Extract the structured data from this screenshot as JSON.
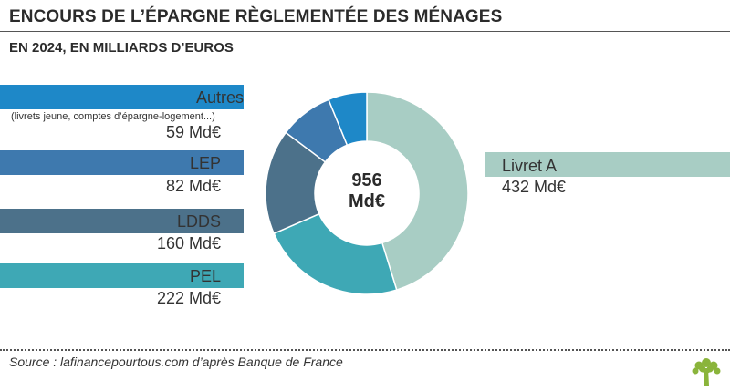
{
  "header": {
    "title": "ENCOURS DE L’ÉPARGNE RÈGLEMENTÉE DES MÉNAGES",
    "subtitle": "EN 2024, EN MILLIARDS D’EUROS"
  },
  "chart_data": {
    "type": "pie",
    "variant": "donut",
    "total_label": [
      "956",
      "Md€"
    ],
    "slices": [
      {
        "name": "Livret A",
        "value": 432,
        "value_label": "432 Md€",
        "color": "#a8cdc4"
      },
      {
        "name": "PEL",
        "value": 222,
        "value_label": "222 Md€",
        "color": "#3ea8b5"
      },
      {
        "name": "LDDS",
        "value": 160,
        "value_label": "160 Md€",
        "color": "#4c718a"
      },
      {
        "name": "LEP",
        "value": 82,
        "value_label": "82 Md€",
        "color": "#3e79ae"
      },
      {
        "name": "Autres",
        "note": "(livrets jeune, comptes d’épargne-logement...)",
        "value": 59,
        "value_label": "59 Md€",
        "color": "#1e88c8"
      }
    ]
  },
  "footer": {
    "source": "Source : lafinancepourtous.com d’après Banque de France",
    "logo_icon": "tree-icon",
    "logo_color": "#8ab43b"
  }
}
